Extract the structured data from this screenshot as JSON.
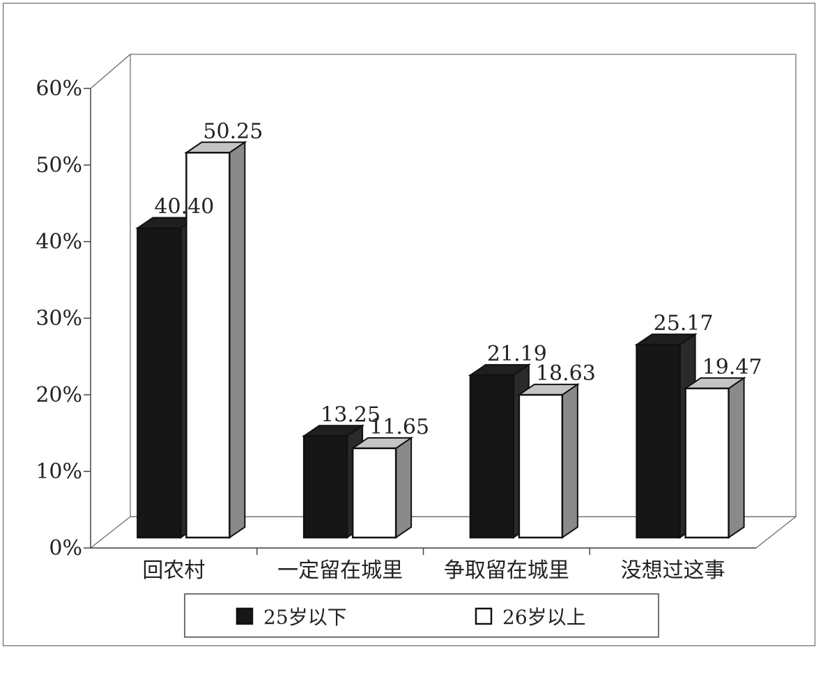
{
  "chart_data": {
    "type": "bar",
    "title": "",
    "xlabel": "",
    "ylabel": "",
    "categories": [
      "回农村",
      "一定留在城里",
      "争取留在城里",
      "没想过这事"
    ],
    "series": [
      {
        "name": "25岁以下",
        "values": [
          40.4,
          13.25,
          21.19,
          25.17
        ],
        "labels": [
          "40.40",
          "13.25",
          "21.19",
          "25.17"
        ],
        "color": "#161616"
      },
      {
        "name": "26岁以上",
        "values": [
          50.25,
          11.65,
          18.63,
          19.47
        ],
        "labels": [
          "50.25",
          "11.65",
          "18.63",
          "19.47"
        ],
        "color": "#ffffff"
      }
    ],
    "ylim": [
      0,
      60
    ],
    "yticks": [
      0,
      10,
      20,
      30,
      40,
      50,
      60
    ],
    "ytick_labels": [
      "0%",
      "10%",
      "20%",
      "30%",
      "40%",
      "50%",
      "60%"
    ],
    "three_d": true,
    "side_color": "#8a8a8a",
    "top_color_light": "#c4c4c4",
    "grid": false,
    "legend_position": "bottom"
  }
}
